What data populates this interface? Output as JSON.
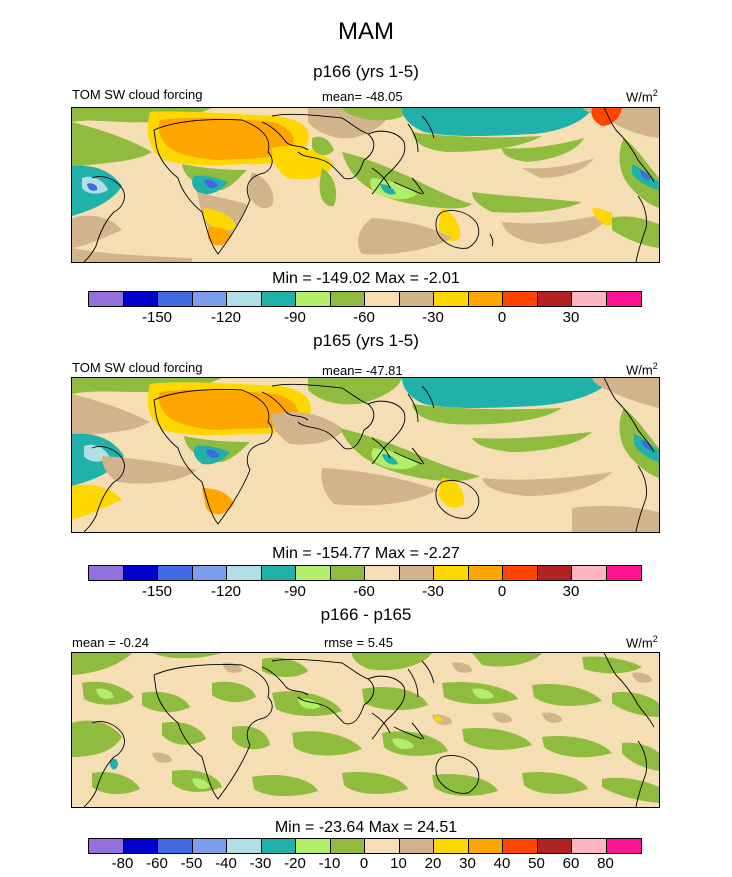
{
  "season_title": "MAM",
  "colors": {
    "abs_palette": [
      "#9370db",
      "#0000cd",
      "#4169e1",
      "#7b9ded",
      "#b0e0e6",
      "#20b2aa",
      "#b3ee6a",
      "#8fbc3f",
      "#f5deb3",
      "#d2b48c",
      "#ffd700",
      "#ffa500",
      "#ff4500",
      "#b22222",
      "#ffb6c1",
      "#ff1493"
    ],
    "diff_palette": [
      "#9370db",
      "#0000cd",
      "#4169e1",
      "#7b9ded",
      "#b0e0e6",
      "#20b2aa",
      "#b3ee6a",
      "#8fbc3f",
      "#f5deb3",
      "#d2b48c",
      "#ffd700",
      "#ffa500",
      "#ff4500",
      "#b22222",
      "#ffb6c1",
      "#ff1493"
    ],
    "land_outline": "#000000"
  },
  "panels": [
    {
      "title": "p166 (yrs 1-5)",
      "left_label": "TOM SW cloud forcing",
      "center_label": "mean= -48.05",
      "units": "W/m",
      "units_sup": "2",
      "minmax": "Min = -149.02 Max =  -2.01",
      "colorbar_ticks": [
        "-150",
        "-120",
        "-90",
        "-60",
        "-30",
        "0",
        "30"
      ]
    },
    {
      "title": "p165 (yrs 1-5)",
      "left_label": "TOM SW cloud forcing",
      "center_label": "mean= -47.81",
      "units": "W/m",
      "units_sup": "2",
      "minmax": "Min = -154.77 Max =  -2.27",
      "colorbar_ticks": [
        "-150",
        "-120",
        "-90",
        "-60",
        "-30",
        "0",
        "30"
      ]
    },
    {
      "title": "p166 - p165",
      "left_label": "mean =  -0.24",
      "center_label": "rmse =  5.45",
      "units": "W/m",
      "units_sup": "2",
      "minmax": "Min = -23.64 Max =  24.51",
      "colorbar_ticks": [
        "-80",
        "-60",
        "-50",
        "-40",
        "-30",
        "-20",
        "-10",
        "0",
        "10",
        "20",
        "30",
        "40",
        "50",
        "60",
        "80"
      ]
    }
  ]
}
